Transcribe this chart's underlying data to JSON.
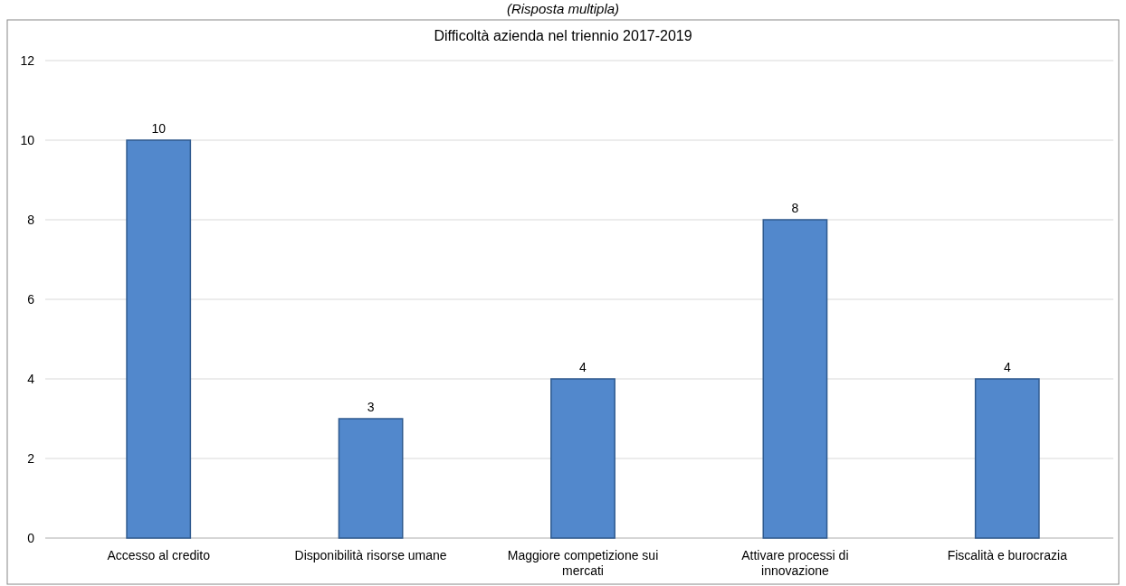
{
  "chart_data": {
    "type": "bar",
    "title": "Difficoltà azienda nel triennio 2017-2019",
    "subtitle": "(Risposta multipla)",
    "categories": [
      "Accesso al credito",
      "Disponibilità risorse umane",
      "Maggiore competizione sui mercati",
      "Attivare processi di innovazione",
      "Fiscalità e burocrazia"
    ],
    "values": [
      10,
      3,
      4,
      8,
      4
    ],
    "color": "#5288cc",
    "ylim": [
      0,
      12
    ],
    "yticks": [
      0,
      2,
      4,
      6,
      8,
      10,
      12
    ],
    "grid": "y",
    "data_labels": true
  }
}
